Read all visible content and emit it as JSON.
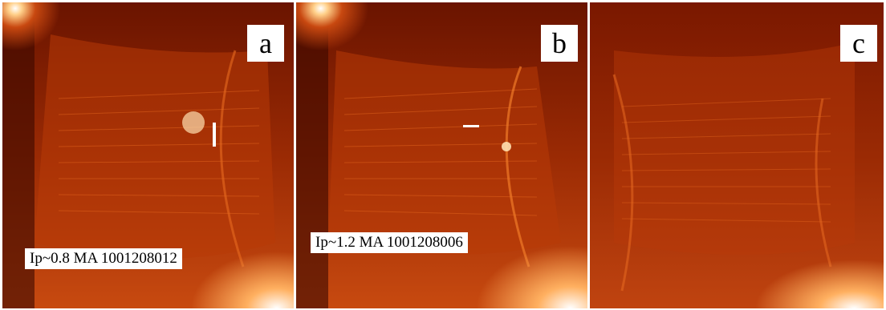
{
  "figure": {
    "colors": {
      "background": "#7a1a00",
      "mid": "#b83a08",
      "bright": "#ff8a30",
      "hot": "#ffffff"
    },
    "panels": [
      {
        "label": "a",
        "caption": "Ip~0.8 MA 1001208012"
      },
      {
        "label": "b",
        "caption": "Ip~1.2 MA 1001208006"
      },
      {
        "label": "c"
      }
    ]
  }
}
